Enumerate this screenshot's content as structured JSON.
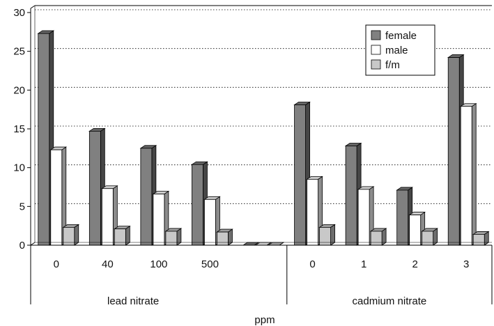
{
  "chart_data": {
    "type": "bar",
    "title": "",
    "xlabel": "ppm",
    "ylabel": "",
    "ylim": [
      0,
      30
    ],
    "yticks": [
      0,
      5,
      10,
      15,
      20,
      25,
      30
    ],
    "grid": "horizontal dotted",
    "legend_position": "top-right",
    "categories": [
      "0",
      "40",
      "100",
      "500",
      "",
      "0",
      "1",
      "2",
      "3"
    ],
    "groups": [
      {
        "label": "lead nitrate",
        "categories": [
          "0",
          "40",
          "100",
          "500"
        ]
      },
      {
        "label": "cadmium nitrate",
        "categories": [
          "0",
          "1",
          "2",
          "3"
        ]
      }
    ],
    "series": [
      {
        "name": "female",
        "color": "#808080",
        "values": [
          27.3,
          14.7,
          12.5,
          10.4,
          0,
          18.1,
          12.8,
          7.1,
          24.2
        ]
      },
      {
        "name": "male",
        "color": "#ffffff",
        "values": [
          12.3,
          7.3,
          6.6,
          5.9,
          0,
          8.5,
          7.2,
          3.9,
          17.9
        ]
      },
      {
        "name": "f/m",
        "color": "#c8c8c8",
        "values": [
          2.3,
          2.1,
          1.8,
          1.7,
          0,
          2.3,
          1.8,
          1.8,
          1.4
        ]
      }
    ]
  }
}
